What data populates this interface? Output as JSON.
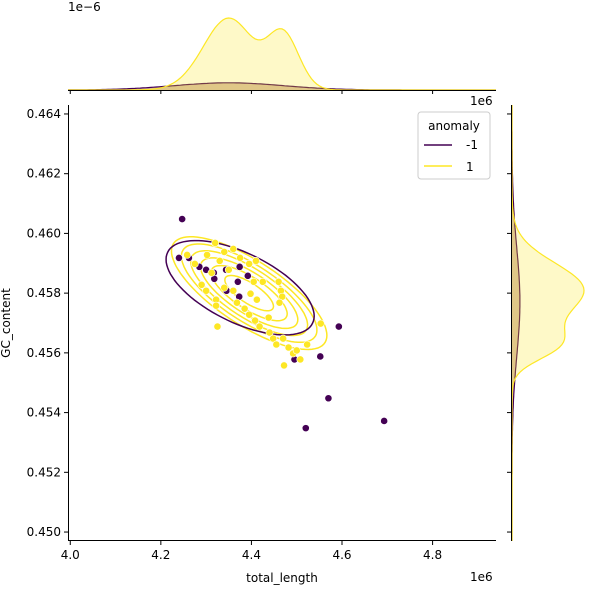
{
  "chart_data": {
    "type": "scatter",
    "title": "",
    "xlabel": "total_length",
    "ylabel": "GC_content",
    "x_offset_label": "1e6",
    "y_offset_label": "",
    "top_marginal_offset_label": "1e−6",
    "right_marginal_offset_label": "1e6",
    "xlim": [
      3.995,
      4.94
    ],
    "ylim": [
      0.4497,
      0.4643
    ],
    "xticks": [
      "4.0",
      "4.2",
      "4.4",
      "4.6",
      "4.8"
    ],
    "xtick_values": [
      4.0,
      4.2,
      4.4,
      4.6,
      4.8
    ],
    "yticks": [
      "0.450",
      "0.452",
      "0.454",
      "0.456",
      "0.458",
      "0.460",
      "0.462",
      "0.464"
    ],
    "ytick_values": [
      0.45,
      0.452,
      0.454,
      0.456,
      0.458,
      0.46,
      0.462,
      0.464
    ],
    "grid": false,
    "legend": {
      "title": "anomaly",
      "placement": "top-right",
      "entries": [
        {
          "label": "-1",
          "color": "#440154"
        },
        {
          "label": "1",
          "color": "#fde725"
        }
      ]
    },
    "series": [
      {
        "name": "-1",
        "color": "#440154",
        "points": [
          [
            4.247,
            0.46048
          ],
          [
            4.24,
            0.45918
          ],
          [
            4.262,
            0.45918
          ],
          [
            4.285,
            0.45888
          ],
          [
            4.3,
            0.45878
          ],
          [
            4.317,
            0.45868
          ],
          [
            4.344,
            0.45878
          ],
          [
            4.374,
            0.45888
          ],
          [
            4.392,
            0.45858
          ],
          [
            4.37,
            0.45838
          ],
          [
            4.318,
            0.45848
          ],
          [
            4.345,
            0.45808
          ],
          [
            4.373,
            0.45788
          ],
          [
            4.495,
            0.45578
          ],
          [
            4.552,
            0.45588
          ],
          [
            4.593,
            0.45688
          ],
          [
            4.57,
            0.45448
          ],
          [
            4.52,
            0.45348
          ],
          [
            4.693,
            0.45372
          ]
        ]
      },
      {
        "name": "1",
        "color": "#fde725",
        "points": [
          [
            4.258,
            0.45928
          ],
          [
            4.275,
            0.45898
          ],
          [
            4.302,
            0.45928
          ],
          [
            4.32,
            0.45968
          ],
          [
            4.34,
            0.45938
          ],
          [
            4.36,
            0.45948
          ],
          [
            4.375,
            0.45918
          ],
          [
            4.395,
            0.45898
          ],
          [
            4.41,
            0.45908
          ],
          [
            4.33,
            0.45908
          ],
          [
            4.35,
            0.45878
          ],
          [
            4.312,
            0.45868
          ],
          [
            4.29,
            0.45828
          ],
          [
            4.3,
            0.45808
          ],
          [
            4.322,
            0.45778
          ],
          [
            4.34,
            0.45818
          ],
          [
            4.36,
            0.45808
          ],
          [
            4.398,
            0.45798
          ],
          [
            4.412,
            0.45778
          ],
          [
            4.425,
            0.45838
          ],
          [
            4.405,
            0.45838
          ],
          [
            4.322,
            0.45758
          ],
          [
            4.368,
            0.45768
          ],
          [
            4.385,
            0.45748
          ],
          [
            4.395,
            0.45728
          ],
          [
            4.408,
            0.45708
          ],
          [
            4.418,
            0.45688
          ],
          [
            4.438,
            0.45718
          ],
          [
            4.46,
            0.45838
          ],
          [
            4.465,
            0.45808
          ],
          [
            4.468,
            0.45788
          ],
          [
            4.462,
            0.45768
          ],
          [
            4.44,
            0.45668
          ],
          [
            4.448,
            0.45648
          ],
          [
            4.455,
            0.45628
          ],
          [
            4.47,
            0.45648
          ],
          [
            4.482,
            0.45618
          ],
          [
            4.492,
            0.45598
          ],
          [
            4.5,
            0.45608
          ],
          [
            4.472,
            0.45558
          ],
          [
            4.508,
            0.45578
          ],
          [
            4.523,
            0.45628
          ],
          [
            4.553,
            0.45698
          ],
          [
            4.325,
            0.45688
          ]
        ]
      }
    ],
    "kde_2d": {
      "-1": {
        "mean": [
          4.375,
          0.45818
        ],
        "sd": [
          0.09,
          0.00087
        ],
        "rho": -0.6,
        "levels": [
          3.3
        ]
      },
      "1": {
        "mean": [
          4.395,
          0.458
        ],
        "sd": [
          0.08,
          0.00088
        ],
        "rho": -0.75,
        "levels": [
          0.45,
          1.1,
          1.8,
          2.6,
          3.5,
          4.6
        ]
      }
    },
    "marginal_x": {
      "-1": {
        "components": [
          [
            4.35,
            0.12,
            1.0
          ]
        ],
        "peak": 0.1
      },
      "1": {
        "components": [
          [
            4.36,
            0.05,
            1.0
          ],
          [
            4.47,
            0.035,
            0.95
          ],
          [
            4.31,
            0.05,
            0.35
          ]
        ],
        "peak": 1.0
      }
    },
    "marginal_y": {
      "-1": {
        "components": [
          [
            0.4577,
            0.0018,
            1.0
          ]
        ],
        "peak": 0.11
      },
      "1": {
        "components": [
          [
            0.4581,
            0.0009,
            1.0
          ],
          [
            0.4561,
            0.00045,
            0.35
          ],
          [
            0.4566,
            0.0005,
            0.3
          ]
        ],
        "peak": 1.0
      }
    }
  }
}
